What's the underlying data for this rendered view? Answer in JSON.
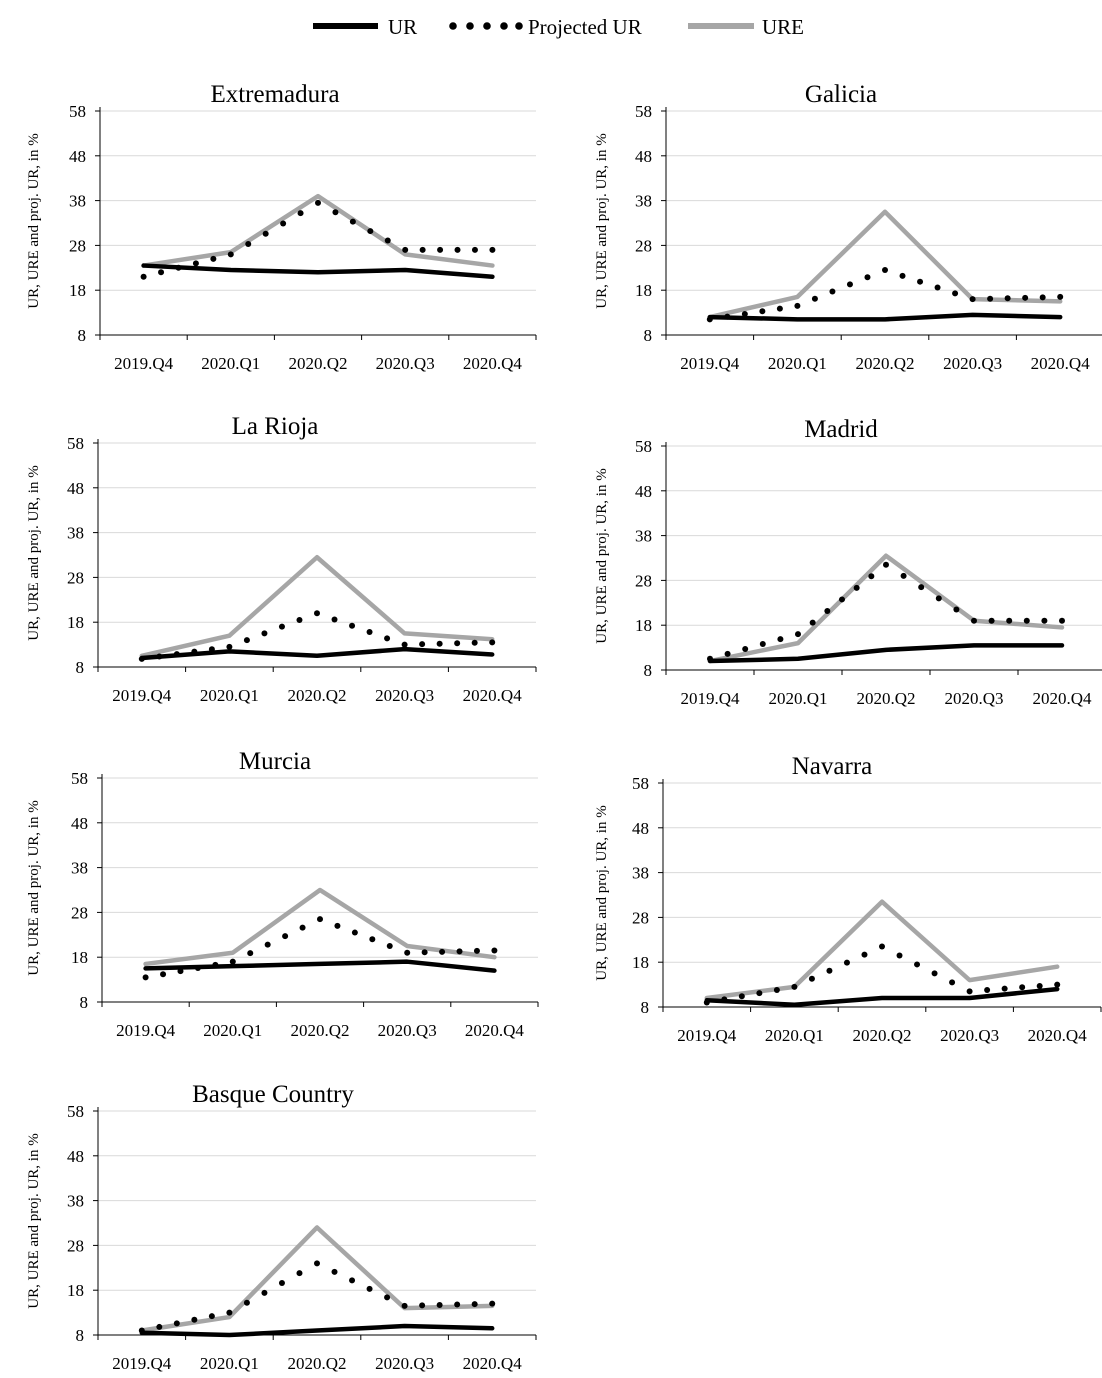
{
  "chart_data": [
    {
      "type": "line",
      "title": "Extremadura",
      "ylabel": "UR, URE and proj. UR, in  %",
      "categories": [
        "2019.Q4",
        "2020.Q1",
        "2020.Q2",
        "2020.Q3",
        "2020.Q4"
      ],
      "yticks": [
        8,
        18,
        28,
        38,
        48,
        58
      ],
      "ylim": [
        8,
        58
      ],
      "series": [
        {
          "name": "UR",
          "values": [
            23.5,
            22.5,
            22.0,
            22.5,
            21.0
          ]
        },
        {
          "name": "Projected UR",
          "values": [
            21.0,
            26.0,
            37.5,
            27.0,
            27.0
          ]
        },
        {
          "name": "URE",
          "values": [
            23.5,
            26.5,
            39.0,
            26.0,
            23.5
          ]
        }
      ]
    },
    {
      "type": "line",
      "title": "Galicia",
      "ylabel": "UR, URE and proj. UR, in  %",
      "categories": [
        "2019.Q4",
        "2020.Q1",
        "2020.Q2",
        "2020.Q3",
        "2020.Q4"
      ],
      "yticks": [
        8,
        18,
        28,
        38,
        48,
        58
      ],
      "ylim": [
        8,
        58
      ],
      "series": [
        {
          "name": "UR",
          "values": [
            12.0,
            11.5,
            11.5,
            12.5,
            12.0
          ]
        },
        {
          "name": "Projected UR",
          "values": [
            11.5,
            14.5,
            22.5,
            16.0,
            16.5
          ]
        },
        {
          "name": "URE",
          "values": [
            12.0,
            16.5,
            35.5,
            16.0,
            15.5
          ]
        }
      ]
    },
    {
      "type": "line",
      "title": "La Rioja",
      "ylabel": "UR, URE and proj. UR, in  %",
      "categories": [
        "2019.Q4",
        "2020.Q1",
        "2020.Q2",
        "2020.Q3",
        "2020.Q4"
      ],
      "yticks": [
        8,
        18,
        28,
        38,
        48,
        58
      ],
      "ylim": [
        8,
        58
      ],
      "series": [
        {
          "name": "UR",
          "values": [
            10.0,
            11.5,
            10.5,
            12.0,
            10.8
          ]
        },
        {
          "name": "Projected UR",
          "values": [
            9.8,
            12.5,
            20.0,
            13.0,
            13.5
          ]
        },
        {
          "name": "URE",
          "values": [
            10.5,
            15.0,
            32.5,
            15.5,
            14.2
          ]
        }
      ]
    },
    {
      "type": "line",
      "title": "Madrid",
      "ylabel": "UR, URE and proj. UR, in  %",
      "categories": [
        "2019.Q4",
        "2020.Q1",
        "2020.Q2",
        "2020.Q3",
        "2020.Q4"
      ],
      "yticks": [
        8,
        18,
        28,
        38,
        48,
        58
      ],
      "ylim": [
        8,
        58
      ],
      "series": [
        {
          "name": "UR",
          "values": [
            10.0,
            10.5,
            12.5,
            13.5,
            13.5
          ]
        },
        {
          "name": "Projected UR",
          "values": [
            10.5,
            16.0,
            31.5,
            19.0,
            19.0
          ]
        },
        {
          "name": "URE",
          "values": [
            10.0,
            14.0,
            33.5,
            19.0,
            17.5
          ]
        }
      ]
    },
    {
      "type": "line",
      "title": "Murcia",
      "ylabel": "UR, URE and proj. UR, in  %",
      "categories": [
        "2019.Q4",
        "2020.Q1",
        "2020.Q2",
        "2020.Q3",
        "2020.Q4"
      ],
      "yticks": [
        8,
        18,
        28,
        38,
        48,
        58
      ],
      "ylim": [
        8,
        58
      ],
      "series": [
        {
          "name": "UR",
          "values": [
            15.5,
            16.0,
            16.5,
            17.0,
            15.0
          ]
        },
        {
          "name": "Projected UR",
          "values": [
            13.5,
            17.0,
            26.5,
            19.0,
            19.5
          ]
        },
        {
          "name": "URE",
          "values": [
            16.5,
            19.0,
            33.0,
            20.5,
            18.0
          ]
        }
      ]
    },
    {
      "type": "line",
      "title": "Navarra",
      "ylabel": "UR, URE and proj. UR, in  %",
      "categories": [
        "2019.Q4",
        "2020.Q1",
        "2020.Q2",
        "2020.Q3",
        "2020.Q4"
      ],
      "yticks": [
        8,
        18,
        28,
        38,
        48,
        58
      ],
      "ylim": [
        8,
        58
      ],
      "series": [
        {
          "name": "UR",
          "values": [
            9.5,
            8.5,
            10.0,
            10.0,
            12.0
          ]
        },
        {
          "name": "Projected UR",
          "values": [
            9.0,
            12.5,
            21.5,
            11.5,
            13.0
          ]
        },
        {
          "name": "URE",
          "values": [
            10.0,
            12.5,
            31.5,
            14.0,
            17.0
          ]
        }
      ]
    },
    {
      "type": "line",
      "title": "Basque Country",
      "ylabel": "UR, URE and proj. UR, in  %",
      "categories": [
        "2019.Q4",
        "2020.Q1",
        "2020.Q2",
        "2020.Q3",
        "2020.Q4"
      ],
      "yticks": [
        8,
        18,
        28,
        38,
        48,
        58
      ],
      "ylim": [
        8,
        58
      ],
      "series": [
        {
          "name": "UR",
          "values": [
            8.5,
            8.0,
            9.0,
            10.0,
            9.5
          ]
        },
        {
          "name": "Projected UR",
          "values": [
            9.0,
            13.0,
            24.0,
            14.5,
            15.0
          ]
        },
        {
          "name": "URE",
          "values": [
            9.0,
            12.0,
            32.0,
            14.0,
            14.5
          ]
        }
      ]
    }
  ],
  "legend": {
    "position": "top-center",
    "items": [
      {
        "label": "UR",
        "color": "#000000",
        "style": "solid"
      },
      {
        "label": "Projected UR",
        "color": "#000000",
        "style": "dotted"
      },
      {
        "label": "URE",
        "color": "#a6a6a6",
        "style": "solid"
      }
    ]
  },
  "colors": {
    "UR": "#000000",
    "Projected UR": "#000000",
    "URE": "#a6a6a6",
    "grid": "#d9d9d9",
    "axis": "#000000"
  },
  "grid": true
}
